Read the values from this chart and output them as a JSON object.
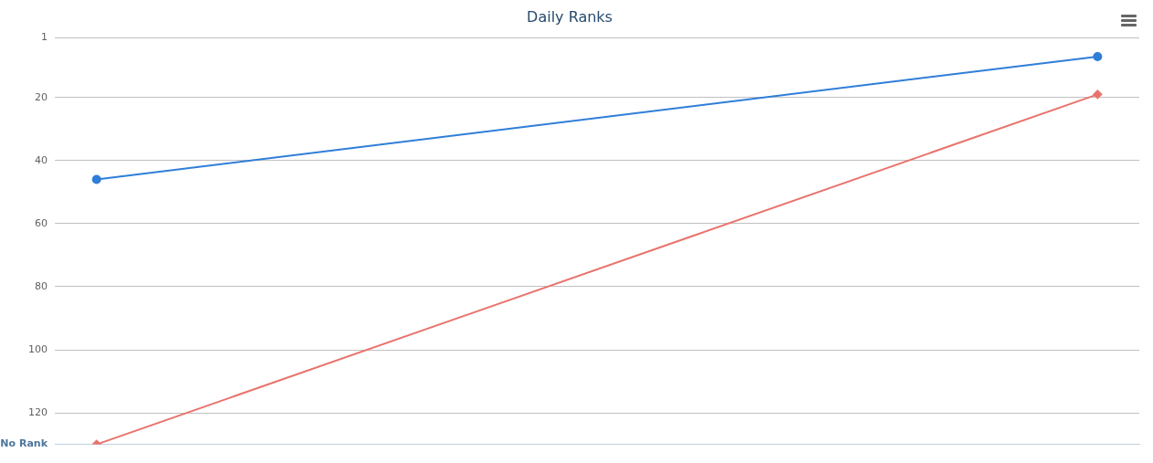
{
  "chart_data": {
    "type": "line",
    "title": "Daily Ranks",
    "categories": [
      null,
      null,
      null,
      null,
      null,
      null,
      null,
      null,
      null,
      null,
      null,
      null,
      null
    ],
    "series": [
      {
        "color": "#2f7ed8",
        "marker": "circle",
        "values": [
          46,
          null,
          null,
          null,
          null,
          null,
          null,
          null,
          null,
          null,
          null,
          null,
          7
        ]
      },
      {
        "color": "#e8736c",
        "marker": "diamond",
        "values": [
          130,
          null,
          null,
          null,
          null,
          null,
          null,
          null,
          null,
          null,
          null,
          null,
          19
        ]
      }
    ],
    "ylim": [
      130,
      1
    ],
    "yticks": [
      1,
      20,
      40,
      60,
      80,
      100,
      120,
      {
        "value": 130,
        "label": "No Rank"
      }
    ],
    "grid": "y",
    "legend": false
  }
}
